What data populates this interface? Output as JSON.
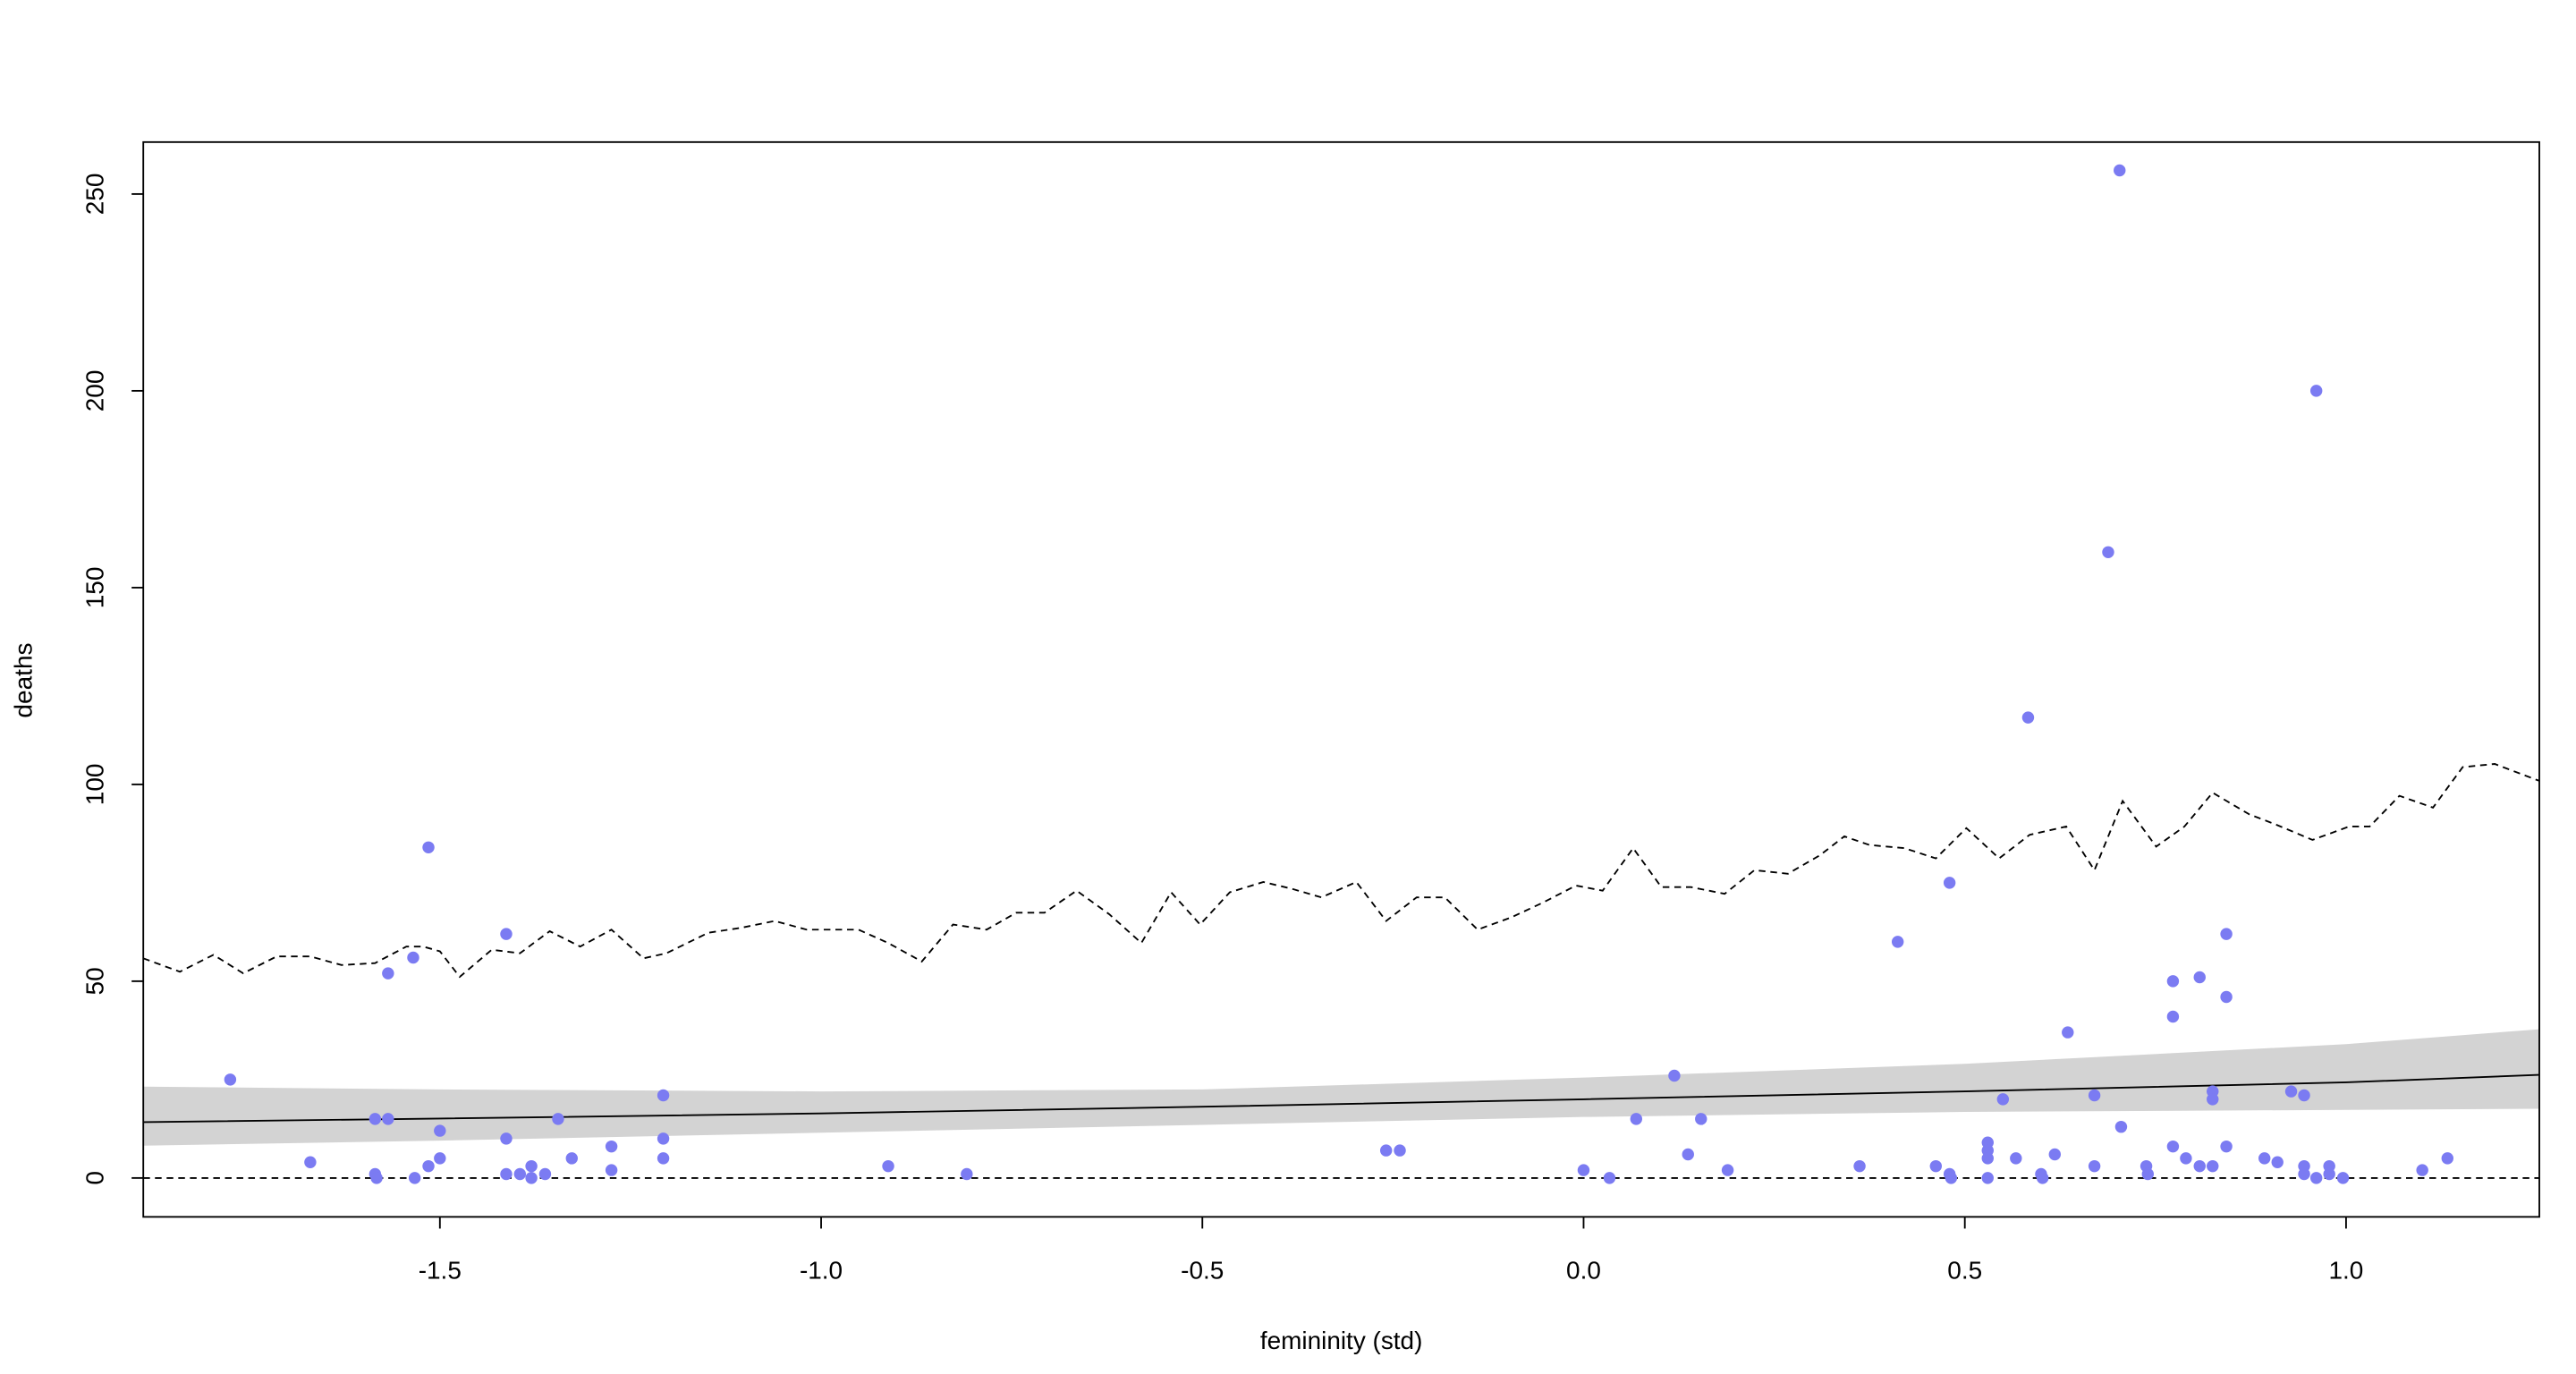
{
  "chart_data": {
    "type": "scatter",
    "x_label": "femininity (std)",
    "y_label": "deaths",
    "xlim": [
      -1.889,
      1.2535
    ],
    "ylim": [
      -9.88,
      263.2
    ],
    "xticks": [
      -1.5,
      {
        "value": -1.0,
        "label": "-1.0"
      },
      -0.5,
      {
        "value": 0.0,
        "label": "0.0"
      },
      0.5,
      {
        "value": 1.0,
        "label": "1.0"
      }
    ],
    "yticks": [
      0,
      50,
      100,
      150,
      200,
      250
    ],
    "point_color": "#7b7bf2",
    "x": [
      -1.775,
      -1.67,
      -1.585,
      -1.568,
      -1.585,
      -1.583,
      -1.568,
      -1.535,
      -1.533,
      -1.515,
      -1.515,
      -1.5,
      -1.5,
      -1.413,
      -1.413,
      -1.413,
      -1.395,
      -1.38,
      -1.38,
      -1.362,
      -1.345,
      -1.327,
      -1.275,
      -1.275,
      -1.207,
      -1.207,
      -1.207,
      -0.912,
      -0.809,
      -0.259,
      -0.241,
      0.0,
      0.034,
      0.069,
      0.119,
      0.137,
      0.154,
      0.189,
      0.362,
      0.412,
      0.462,
      0.48,
      0.48,
      0.482,
      0.53,
      0.53,
      0.53,
      0.53,
      0.55,
      0.567,
      0.583,
      0.6,
      0.602,
      0.618,
      0.635,
      0.67,
      0.67,
      0.688,
      0.703,
      0.705,
      0.738,
      0.74,
      0.773,
      0.773,
      0.773,
      0.79,
      0.808,
      0.808,
      0.825,
      0.825,
      0.825,
      0.843,
      0.843,
      0.843,
      0.893,
      0.91,
      0.928,
      0.945,
      0.945,
      0.945,
      0.961,
      0.961,
      0.978,
      0.978,
      0.996,
      1.1,
      1.133
    ],
    "values": [
      25,
      4,
      15,
      15,
      1,
      0,
      52,
      56,
      0,
      84,
      3,
      12,
      5,
      62,
      10,
      1,
      1,
      3,
      0,
      1,
      15,
      5,
      8,
      2,
      21,
      10,
      5,
      3,
      1,
      7,
      7,
      2,
      0,
      15,
      26,
      6,
      15,
      2,
      3,
      60,
      3,
      75,
      1,
      0,
      9,
      7,
      5,
      0,
      20,
      5,
      117,
      1,
      0,
      6,
      37,
      21,
      3,
      159,
      256,
      13,
      3,
      1,
      50,
      41,
      8,
      5,
      51,
      3,
      22,
      20,
      3,
      62,
      46,
      8,
      5,
      4,
      22,
      21,
      3,
      1,
      200,
      0,
      3,
      1,
      0,
      2,
      5
    ],
    "band": {
      "color": "#d3d3d3",
      "x": [
        -1.889,
        -1.5,
        -1.0,
        -0.5,
        0.0,
        0.5,
        1.0,
        1.2535
      ],
      "upper": [
        23.2,
        22.5,
        22.0,
        22.5,
        25.5,
        29,
        34,
        37.8
      ],
      "lower": [
        8.2,
        9.5,
        11.5,
        13.5,
        15.5,
        16.8,
        17.3,
        17.6
      ]
    },
    "mean_line": {
      "x": [
        -1.889,
        -1.5,
        -1.0,
        -0.5,
        0.0,
        0.5,
        1.0,
        1.2535
      ],
      "values": [
        14.2,
        15.1,
        16.4,
        18.1,
        20.0,
        22.0,
        24.3,
        26.2
      ]
    },
    "pi_upper": {
      "x": [
        -1.889,
        -1.841,
        -1.797,
        -1.758,
        -1.714,
        -1.67,
        -1.629,
        -1.585,
        -1.544,
        -1.522,
        -1.5,
        -1.474,
        -1.432,
        -1.395,
        -1.356,
        -1.316,
        -1.275,
        -1.233,
        -1.203,
        -1.148,
        -1.104,
        -1.061,
        -1.019,
        -0.951,
        -0.912,
        -0.868,
        -0.827,
        -0.783,
        -0.744,
        -0.707,
        -0.665,
        -0.622,
        -0.58,
        -0.541,
        -0.503,
        -0.464,
        -0.42,
        -0.383,
        -0.344,
        -0.298,
        -0.259,
        -0.219,
        -0.182,
        -0.139,
        -0.095,
        -0.053,
        -0.01,
        0.025,
        0.065,
        0.102,
        0.141,
        0.185,
        0.224,
        0.268,
        0.31,
        0.342,
        0.375,
        0.421,
        0.462,
        0.502,
        0.545,
        0.585,
        0.633,
        0.67,
        0.707,
        0.751,
        0.788,
        0.825,
        0.873,
        0.908,
        0.956,
        1.004,
        1.031,
        1.07,
        1.114,
        1.153,
        1.195,
        1.2535
      ],
      "values": [
        55.8,
        52.4,
        56.7,
        52.0,
        56.3,
        56.3,
        54.1,
        54.6,
        58.8,
        58.8,
        57.6,
        51.1,
        58.0,
        57.1,
        62.7,
        58.8,
        63.1,
        55.8,
        57.1,
        62.3,
        63.6,
        65.3,
        63.1,
        63.1,
        59.7,
        55.0,
        64.4,
        63.1,
        67.4,
        67.4,
        73.0,
        67.0,
        59.7,
        72.6,
        64.4,
        72.6,
        75.2,
        73.5,
        71.3,
        75.2,
        65.3,
        71.3,
        71.3,
        63.1,
        66.2,
        70.0,
        74.3,
        73.0,
        83.8,
        73.9,
        73.9,
        72.2,
        78.2,
        77.3,
        82.0,
        86.8,
        84.6,
        83.8,
        81.2,
        88.9,
        81.2,
        87.2,
        89.3,
        78.2,
        95.8,
        84.2,
        89.3,
        97.9,
        92.4,
        89.8,
        85.9,
        89.3,
        89.3,
        97.1,
        94.1,
        104.4,
        105.2,
        100.9
      ]
    },
    "pi_lower": {
      "x": [
        -1.889,
        1.2535
      ],
      "values": [
        0,
        0
      ]
    }
  }
}
